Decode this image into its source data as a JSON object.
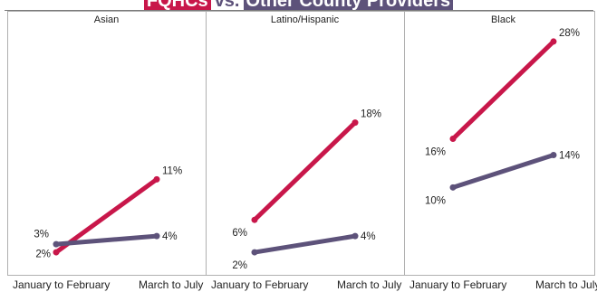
{
  "title": {
    "part1": "FQHCs",
    "part2": "vs.",
    "part3": "Other County Providers"
  },
  "colors": {
    "fqhc": "#c8174a",
    "other": "#5d527a",
    "panel_border": "#b0b0b0"
  },
  "chart_data": [
    {
      "type": "line",
      "title": "Asian",
      "categories": [
        "January to February",
        "March to July"
      ],
      "ylim": [
        0,
        30
      ],
      "series": [
        {
          "values": [
            2,
            11
          ],
          "labels": [
            "2%",
            "11%"
          ],
          "color": "#c8174a"
        },
        {
          "values": [
            3,
            4
          ],
          "labels": [
            "3%",
            "4%"
          ],
          "color": "#5d527a"
        }
      ]
    },
    {
      "type": "line",
      "title": "Latino/Hispanic",
      "categories": [
        "January to February",
        "March to July"
      ],
      "ylim": [
        0,
        30
      ],
      "series": [
        {
          "values": [
            6,
            18
          ],
          "labels": [
            "6%",
            "18%"
          ],
          "color": "#c8174a"
        },
        {
          "values": [
            2,
            4
          ],
          "labels": [
            "2%",
            "4%"
          ],
          "color": "#5d527a"
        }
      ]
    },
    {
      "type": "line",
      "title": "Black",
      "categories": [
        "January to February",
        "March to July"
      ],
      "ylim": [
        0,
        30
      ],
      "series": [
        {
          "values": [
            16,
            28
          ],
          "labels": [
            "16%",
            "28%"
          ],
          "color": "#c8174a"
        },
        {
          "values": [
            10,
            14
          ],
          "labels": [
            "10%",
            "14%"
          ],
          "color": "#5d527a"
        }
      ]
    }
  ]
}
